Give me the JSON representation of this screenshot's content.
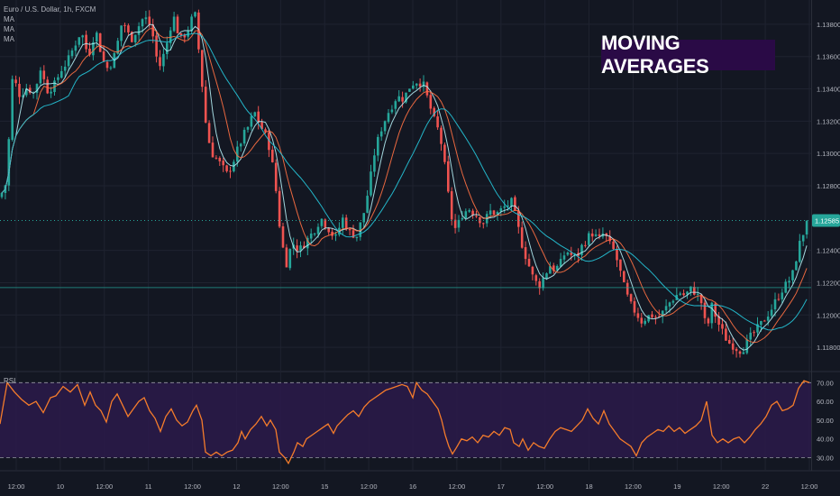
{
  "legend": {
    "title": "Euro / U.S. Dollar, 1h, FXCM",
    "ma_labels": [
      "MA",
      "MA",
      "MA"
    ]
  },
  "badge": "MOVING AVERAGES",
  "rsi_label": "RSI",
  "colors": {
    "background": "#131722",
    "up": "#26a69a",
    "down": "#ef5350",
    "ma_fast": "#b2ebf2",
    "ma_mid": "#ff7043",
    "ma_slow": "#26c6da",
    "rsi_line": "#f57c2b",
    "rsi_band": "#2b1a4a",
    "last_price": "#26a69a",
    "grid": "#1f2330"
  },
  "chart_data": [
    {
      "type": "candlestick",
      "title": "Euro / U.S. Dollar, 1h, FXCM",
      "y_ticks": [
        "1.13800",
        "1.13600",
        "1.13400",
        "1.13200",
        "1.13000",
        "1.12800",
        "1.12400",
        "1.12200",
        "1.12000",
        "1.11800"
      ],
      "ylim": [
        1.1165,
        1.1395
      ],
      "x_ticks": [
        "12:00",
        "10",
        "12:00",
        "11",
        "12:00",
        "12",
        "12:00",
        "15",
        "12:00",
        "16",
        "12:00",
        "17",
        "12:00",
        "18",
        "12:00",
        "19",
        "12:00",
        "22",
        "12:00"
      ],
      "last_price": {
        "label": "1.12585",
        "value": 1.12585
      },
      "horizontal_line": 1.1217,
      "series": [
        {
          "name": "MA",
          "period": 5
        },
        {
          "name": "MA",
          "period": 10
        },
        {
          "name": "MA",
          "period": 20
        }
      ],
      "close_path": [
        [
          0,
          1.1273
        ],
        [
          7,
          1.1282
        ],
        [
          14,
          1.1348
        ],
        [
          22,
          1.1336
        ],
        [
          30,
          1.1341
        ],
        [
          38,
          1.1337
        ],
        [
          45,
          1.1353
        ],
        [
          52,
          1.1339
        ],
        [
          60,
          1.1342
        ],
        [
          68,
          1.1352
        ],
        [
          75,
          1.1357
        ],
        [
          82,
          1.1366
        ],
        [
          90,
          1.1376
        ],
        [
          98,
          1.136
        ],
        [
          106,
          1.1377
        ],
        [
          114,
          1.1358
        ],
        [
          120,
          1.1352
        ],
        [
          128,
          1.1362
        ],
        [
          136,
          1.1383
        ],
        [
          145,
          1.137
        ],
        [
          152,
          1.1377
        ],
        [
          160,
          1.1385
        ],
        [
          168,
          1.1378
        ],
        [
          176,
          1.1352
        ],
        [
          184,
          1.1365
        ],
        [
          192,
          1.1386
        ],
        [
          200,
          1.137
        ],
        [
          208,
          1.1376
        ],
        [
          216,
          1.1388
        ],
        [
          222,
          1.1356
        ],
        [
          228,
          1.132
        ],
        [
          234,
          1.1301
        ],
        [
          240,
          1.1297
        ],
        [
          246,
          1.1292
        ],
        [
          252,
          1.1287
        ],
        [
          258,
          1.1294
        ],
        [
          264,
          1.1303
        ],
        [
          270,
          1.1311
        ],
        [
          276,
          1.1317
        ],
        [
          282,
          1.1326
        ],
        [
          288,
          1.1318
        ],
        [
          294,
          1.1312
        ],
        [
          300,
          1.1302
        ],
        [
          306,
          1.1278
        ],
        [
          312,
          1.1246
        ],
        [
          318,
          1.1232
        ],
        [
          324,
          1.1245
        ],
        [
          332,
          1.124
        ],
        [
          340,
          1.1246
        ],
        [
          348,
          1.1252
        ],
        [
          356,
          1.126
        ],
        [
          364,
          1.1254
        ],
        [
          372,
          1.1247
        ],
        [
          380,
          1.126
        ],
        [
          388,
          1.1251
        ],
        [
          396,
          1.1249
        ],
        [
          404,
          1.1264
        ],
        [
          410,
          1.1281
        ],
        [
          416,
          1.1302
        ],
        [
          424,
          1.1317
        ],
        [
          432,
          1.1327
        ],
        [
          440,
          1.1335
        ],
        [
          448,
          1.1334
        ],
        [
          456,
          1.1343
        ],
        [
          464,
          1.1345
        ],
        [
          470,
          1.1342
        ],
        [
          476,
          1.1331
        ],
        [
          482,
          1.132
        ],
        [
          488,
          1.1312
        ],
        [
          494,
          1.129
        ],
        [
          500,
          1.1262
        ],
        [
          506,
          1.1252
        ],
        [
          512,
          1.1262
        ],
        [
          520,
          1.1266
        ],
        [
          528,
          1.1262
        ],
        [
          536,
          1.1257
        ],
        [
          544,
          1.1264
        ],
        [
          552,
          1.1263
        ],
        [
          560,
          1.1267
        ],
        [
          568,
          1.127
        ],
        [
          574,
          1.1256
        ],
        [
          580,
          1.1242
        ],
        [
          586,
          1.1232
        ],
        [
          592,
          1.1222
        ],
        [
          598,
          1.1218
        ],
        [
          604,
          1.1224
        ],
        [
          610,
          1.1231
        ],
        [
          616,
          1.1228
        ],
        [
          622,
          1.1232
        ],
        [
          628,
          1.124
        ],
        [
          634,
          1.1237
        ],
        [
          640,
          1.1236
        ],
        [
          646,
          1.1243
        ],
        [
          652,
          1.1248
        ],
        [
          658,
          1.1251
        ],
        [
          664,
          1.1246
        ],
        [
          670,
          1.1251
        ],
        [
          676,
          1.1244
        ],
        [
          682,
          1.1239
        ],
        [
          688,
          1.1227
        ],
        [
          694,
          1.1214
        ],
        [
          700,
          1.1206
        ],
        [
          706,
          1.1201
        ],
        [
          712,
          1.1196
        ],
        [
          718,
          1.1199
        ],
        [
          724,
          1.12
        ],
        [
          730,
          1.1198
        ],
        [
          736,
          1.1202
        ],
        [
          742,
          1.1207
        ],
        [
          748,
          1.1211
        ],
        [
          754,
          1.1214
        ],
        [
          760,
          1.1212
        ],
        [
          766,
          1.1216
        ],
        [
          772,
          1.1214
        ],
        [
          778,
          1.1208
        ],
        [
          784,
          1.119
        ],
        [
          790,
          1.1206
        ],
        [
          796,
          1.1196
        ],
        [
          802,
          1.1189
        ],
        [
          808,
          1.1183
        ],
        [
          814,
          1.1181
        ],
        [
          820,
          1.1178
        ],
        [
          826,
          1.118
        ],
        [
          832,
          1.1186
        ],
        [
          838,
          1.119
        ],
        [
          844,
          1.1194
        ],
        [
          850,
          1.1199
        ],
        [
          856,
          1.1204
        ],
        [
          862,
          1.121
        ],
        [
          868,
          1.1216
        ],
        [
          874,
          1.122
        ],
        [
          880,
          1.1226
        ],
        [
          886,
          1.1242
        ],
        [
          892,
          1.1252
        ],
        [
          898,
          1.12585
        ]
      ]
    },
    {
      "type": "line",
      "title": "RSI",
      "y_ticks": [
        "70.00",
        "60.00",
        "50.00",
        "40.00",
        "30.00"
      ],
      "ylim": [
        24,
        74
      ],
      "band": [
        30,
        70
      ],
      "series": [
        {
          "name": "",
          "values": [
            [
              0,
              48
            ],
            [
              8,
              70
            ],
            [
              16,
              65
            ],
            [
              24,
              61
            ],
            [
              32,
              58
            ],
            [
              40,
              60
            ],
            [
              48,
              54
            ],
            [
              56,
              62
            ],
            [
              62,
              63
            ],
            [
              70,
              68
            ],
            [
              78,
              65
            ],
            [
              86,
              69
            ],
            [
              94,
              58
            ],
            [
              100,
              65
            ],
            [
              106,
              58
            ],
            [
              112,
              55
            ],
            [
              118,
              49
            ],
            [
              124,
              60
            ],
            [
              130,
              64
            ],
            [
              136,
              58
            ],
            [
              142,
              52
            ],
            [
              148,
              56
            ],
            [
              154,
              60
            ],
            [
              160,
              62
            ],
            [
              166,
              55
            ],
            [
              172,
              51
            ],
            [
              178,
              44
            ],
            [
              184,
              52
            ],
            [
              190,
              56
            ],
            [
              196,
              50
            ],
            [
              202,
              47
            ],
            [
              208,
              49
            ],
            [
              214,
              55
            ],
            [
              218,
              58
            ],
            [
              224,
              50
            ],
            [
              228,
              33
            ],
            [
              234,
              31
            ],
            [
              240,
              33
            ],
            [
              246,
              31
            ],
            [
              252,
              33
            ],
            [
              258,
              34
            ],
            [
              264,
              38
            ],
            [
              268,
              44
            ],
            [
              272,
              40
            ],
            [
              278,
              45
            ],
            [
              284,
              48
            ],
            [
              290,
              52
            ],
            [
              296,
              47
            ],
            [
              300,
              50
            ],
            [
              306,
              45
            ],
            [
              310,
              33
            ],
            [
              316,
              30
            ],
            [
              320,
              27
            ],
            [
              326,
              33
            ],
            [
              330,
              38
            ],
            [
              336,
              36
            ],
            [
              340,
              40
            ],
            [
              346,
              42
            ],
            [
              352,
              44
            ],
            [
              358,
              46
            ],
            [
              364,
              48
            ],
            [
              370,
              43
            ],
            [
              374,
              47
            ],
            [
              380,
              50
            ],
            [
              386,
              53
            ],
            [
              392,
              55
            ],
            [
              398,
              52
            ],
            [
              404,
              57
            ],
            [
              410,
              60
            ],
            [
              416,
              62
            ],
            [
              422,
              64
            ],
            [
              428,
              66
            ],
            [
              434,
              67
            ],
            [
              440,
              68
            ],
            [
              446,
              69
            ],
            [
              452,
              68
            ],
            [
              458,
              62
            ],
            [
              462,
              70
            ],
            [
              468,
              66
            ],
            [
              474,
              64
            ],
            [
              480,
              60
            ],
            [
              486,
              56
            ],
            [
              490,
              50
            ],
            [
              494,
              42
            ],
            [
              498,
              36
            ],
            [
              502,
              32
            ],
            [
              506,
              35
            ],
            [
              512,
              40
            ],
            [
              518,
              39
            ],
            [
              524,
              41
            ],
            [
              530,
              38
            ],
            [
              536,
              42
            ],
            [
              542,
              41
            ],
            [
              548,
              44
            ],
            [
              554,
              42
            ],
            [
              560,
              46
            ],
            [
              566,
              45
            ],
            [
              570,
              38
            ],
            [
              576,
              36
            ],
            [
              580,
              40
            ],
            [
              586,
              34
            ],
            [
              592,
              38
            ],
            [
              598,
              36
            ],
            [
              604,
              35
            ],
            [
              610,
              40
            ],
            [
              616,
              44
            ],
            [
              622,
              46
            ],
            [
              628,
              45
            ],
            [
              634,
              44
            ],
            [
              640,
              47
            ],
            [
              646,
              50
            ],
            [
              652,
              56
            ],
            [
              658,
              51
            ],
            [
              664,
              48
            ],
            [
              670,
              55
            ],
            [
              676,
              48
            ],
            [
              682,
              44
            ],
            [
              688,
              40
            ],
            [
              694,
              38
            ],
            [
              700,
              36
            ],
            [
              706,
              31
            ],
            [
              712,
              38
            ],
            [
              718,
              41
            ],
            [
              724,
              43
            ],
            [
              730,
              45
            ],
            [
              736,
              44
            ],
            [
              742,
              47
            ],
            [
              748,
              44
            ],
            [
              754,
              46
            ],
            [
              760,
              43
            ],
            [
              766,
              45
            ],
            [
              772,
              47
            ],
            [
              778,
              50
            ],
            [
              784,
              60
            ],
            [
              790,
              42
            ],
            [
              796,
              38
            ],
            [
              802,
              40
            ],
            [
              808,
              38
            ],
            [
              814,
              40
            ],
            [
              820,
              41
            ],
            [
              826,
              38
            ],
            [
              832,
              41
            ],
            [
              838,
              45
            ],
            [
              844,
              48
            ],
            [
              850,
              52
            ],
            [
              856,
              58
            ],
            [
              862,
              60
            ],
            [
              868,
              55
            ],
            [
              874,
              56
            ],
            [
              880,
              58
            ],
            [
              886,
              67
            ],
            [
              892,
              71
            ],
            [
              898,
              70
            ]
          ]
        }
      ]
    }
  ]
}
